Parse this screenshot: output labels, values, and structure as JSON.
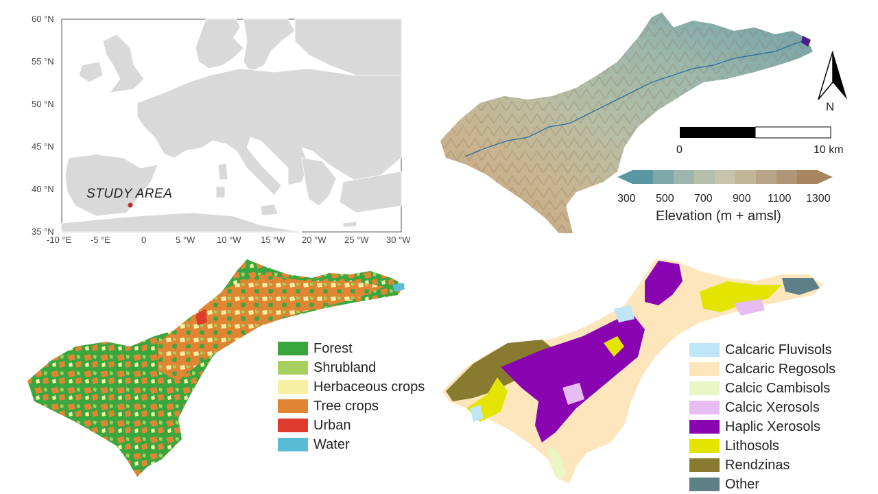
{
  "location_map": {
    "lat_ticks": [
      "60 °N",
      "55 °N",
      "50 °N",
      "45 °N",
      "40 °N",
      "35 °N"
    ],
    "lon_ticks": [
      "-10 °E",
      "-5 °E",
      "0",
      "5 °W",
      "10 °W",
      "15 °W",
      "20 °W",
      "25 °W",
      "30 °W"
    ],
    "study_area_label": "STUDY AREA",
    "land_color": "#d9d9d9",
    "border_color": "#ffffff",
    "marker_color": "#c0282a"
  },
  "elevation_map": {
    "north_label": "N",
    "scale_start": "0",
    "scale_end": "10 km",
    "legend_ticks": [
      "300",
      "500",
      "700",
      "900",
      "1100",
      "1300"
    ],
    "legend_title": "Elevation (m + amsl)",
    "legend_colors": [
      "#5b97a3",
      "#7ea7a8",
      "#9db5ad",
      "#b6bfad",
      "#c6c4a9",
      "#c2b698",
      "#b8a587",
      "#b09577",
      "#a7855f"
    ],
    "river_color": "#2f6fa3"
  },
  "land_use_map": {
    "legend": [
      {
        "label": "Forest",
        "color": "#3aa63e"
      },
      {
        "label": "Shrubland",
        "color": "#a5d05e"
      },
      {
        "label": "Herbaceous crops",
        "color": "#f6f0a2"
      },
      {
        "label": "Tree crops",
        "color": "#e08533"
      },
      {
        "label": "Urban",
        "color": "#df3b2e"
      },
      {
        "label": "Water",
        "color": "#5bbcd8"
      }
    ]
  },
  "soil_map": {
    "legend": [
      {
        "label": "Calcaric Fluvisols",
        "color": "#bfe6f7"
      },
      {
        "label": "Calcaric Regosols",
        "color": "#fde6bb"
      },
      {
        "label": "Calcic Cambisols",
        "color": "#e9f7c4"
      },
      {
        "label": "Calcic Xerosols",
        "color": "#e6bcf3"
      },
      {
        "label": "Haplic Xerosols",
        "color": "#8a05b2"
      },
      {
        "label": "Lithosols",
        "color": "#e3e500"
      },
      {
        "label": "Rendzinas",
        "color": "#8a7a2f"
      },
      {
        "label": "Other",
        "color": "#5e7f88"
      }
    ]
  }
}
